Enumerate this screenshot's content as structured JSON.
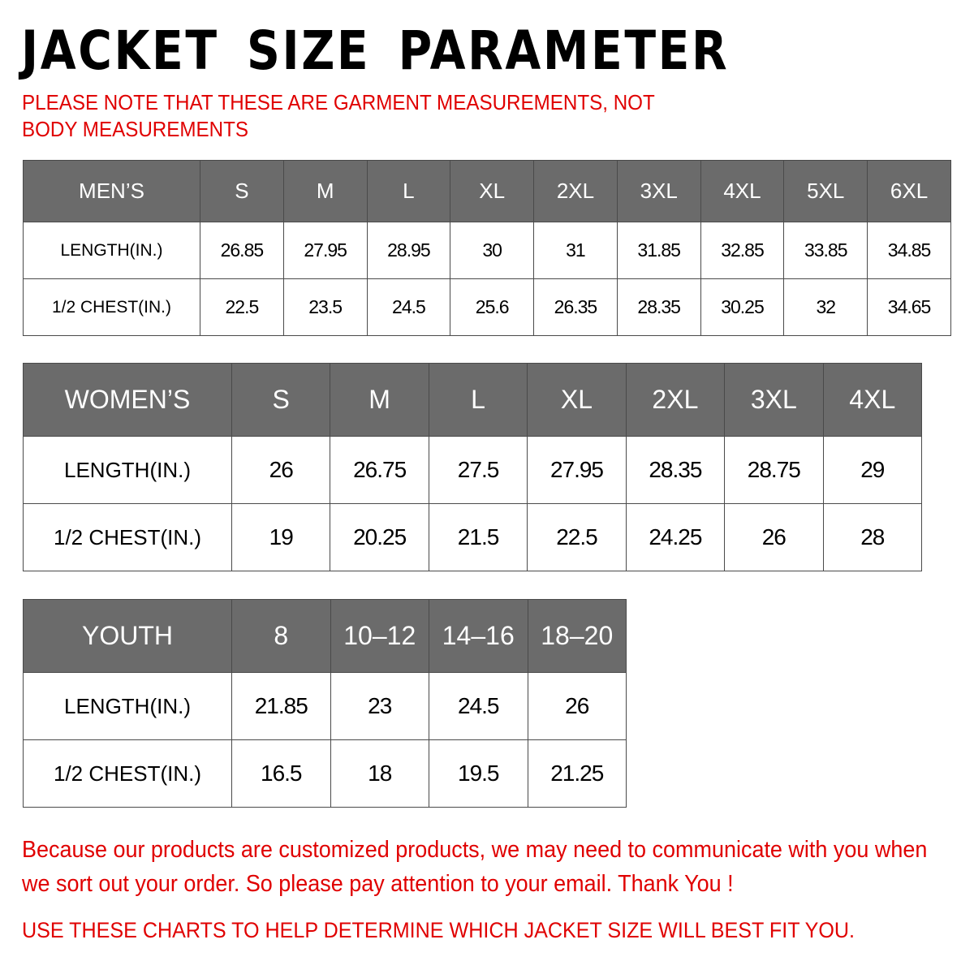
{
  "title": "JACKET SIZE PARAMETER",
  "note": "PLEASE NOTE THAT THESE ARE GARMENT MEASUREMENTS, NOT BODY MEASUREMENTS",
  "colors": {
    "header_bg": "#6b6b6b",
    "accent_red": "#e00000"
  },
  "tables": {
    "men": {
      "header": [
        "MEN’S",
        "S",
        "M",
        "L",
        "XL",
        "2XL",
        "3XL",
        "4XL",
        "5XL",
        "6XL"
      ],
      "rows": [
        [
          "LENGTH(IN.)",
          "26.85",
          "27.95",
          "28.95",
          "30",
          "31",
          "31.85",
          "32.85",
          "33.85",
          "34.85"
        ],
        [
          "1/2 CHEST(IN.)",
          "22.5",
          "23.5",
          "24.5",
          "25.6",
          "26.35",
          "28.35",
          "30.25",
          "32",
          "34.65"
        ]
      ]
    },
    "women": {
      "header": [
        "WOMEN’S",
        "S",
        "M",
        "L",
        "XL",
        "2XL",
        "3XL",
        "4XL"
      ],
      "rows": [
        [
          "LENGTH(IN.)",
          "26",
          "26.75",
          "27.5",
          "27.95",
          "28.35",
          "28.75",
          "29"
        ],
        [
          "1/2 CHEST(IN.)",
          "19",
          "20.25",
          "21.5",
          "22.5",
          "24.25",
          "26",
          "28"
        ]
      ]
    },
    "youth": {
      "header": [
        "YOUTH",
        "8",
        "10–12",
        "14–16",
        "18–20"
      ],
      "rows": [
        [
          "LENGTH(IN.)",
          "21.85",
          "23",
          "24.5",
          "26"
        ],
        [
          "1/2 CHEST(IN.)",
          "16.5",
          "18",
          "19.5",
          "21.25"
        ]
      ]
    }
  },
  "footer": {
    "message": "Because our products are customized products, we may need to communicate with you when we sort out your order. So please pay attention to your email. Thank You !",
    "instruction": "USE THESE CHARTS TO HELP DETERMINE WHICH JACKET SIZE WILL BEST FIT YOU."
  }
}
